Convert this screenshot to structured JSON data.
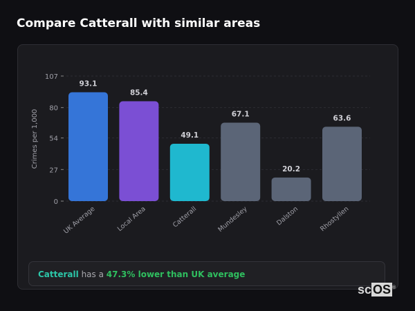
{
  "title": "Compare Catterall with similar areas",
  "chart_data": {
    "type": "bar",
    "categories": [
      "UK Average",
      "Local Area",
      "Catterall",
      "Mundesley",
      "Dalston",
      "Rhostyllen"
    ],
    "values": [
      93.1,
      85.4,
      49.1,
      67.1,
      20.2,
      63.6
    ],
    "colors": [
      "#3575d8",
      "#7b4fd4",
      "#1fb8cf",
      "#5b6577",
      "#5b6577",
      "#5b6577"
    ],
    "ylabel": "Crimes per 1,000",
    "xlabel": "",
    "ylim": [
      0,
      107
    ],
    "yticks": [
      0,
      27,
      54,
      80,
      107
    ],
    "grid": true,
    "legend": "none"
  },
  "footer": {
    "place": "Catterall",
    "middle": " has a ",
    "stat": "47.3% lower than UK average"
  },
  "logo": {
    "text": "scOS"
  }
}
